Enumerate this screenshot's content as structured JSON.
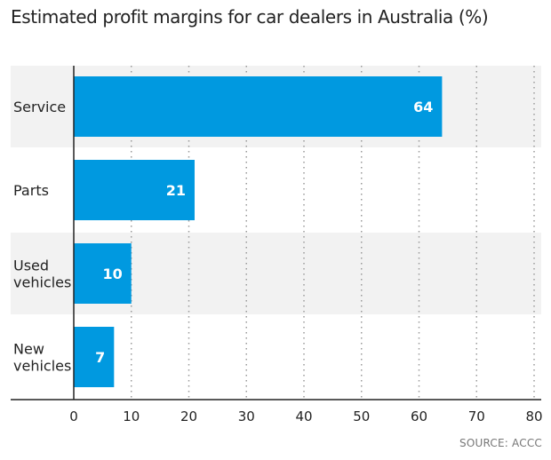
{
  "title": "Estimated profit margins for car dealers in Australia (%)",
  "source": "SOURCE: ACCC",
  "colors": {
    "bar": "#0099e0",
    "band_odd": "#f2f2f2",
    "band_even": "#ffffff",
    "grid": "#999999",
    "axis": "#222222"
  },
  "chart_data": {
    "type": "bar",
    "orientation": "horizontal",
    "title": "Estimated profit margins for car dealers in Australia (%)",
    "categories": [
      [
        "Service"
      ],
      [
        "Parts"
      ],
      [
        "Used",
        "vehicles"
      ],
      [
        "New",
        "vehicles"
      ]
    ],
    "values": [
      64,
      21,
      10,
      7
    ],
    "data_labels": [
      "64",
      "21",
      "10",
      "7"
    ],
    "xlim": [
      0,
      80
    ],
    "ticks": [
      0,
      10,
      20,
      30,
      40,
      50,
      60,
      70,
      80
    ],
    "tick_labels": [
      "0",
      "10",
      "20",
      "30",
      "40",
      "50",
      "60",
      "70",
      "80"
    ],
    "xlabel": "",
    "ylabel": "",
    "grid": "vertical dotted",
    "legend": "none"
  }
}
